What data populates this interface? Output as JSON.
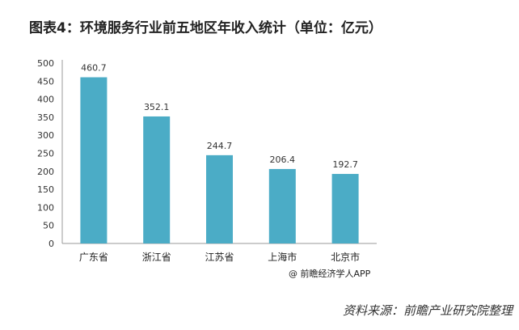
{
  "title": "图表4：环境服务行业前五地区年收入统计（单位：亿元）",
  "credit": "@ 前瞻经济学人APP",
  "source": "资料来源：前瞻产业研究院整理",
  "watermark": "前瞻产业研究院",
  "chart_data": {
    "type": "bar",
    "title": "图表4：环境服务行业前五地区年收入统计（单位：亿元）",
    "categories": [
      "广东省",
      "浙江省",
      "江苏省",
      "上海市",
      "北京市"
    ],
    "values": [
      460.7,
      352.1,
      244.7,
      206.4,
      192.7
    ],
    "data_labels": [
      "460.7",
      "352.1",
      "244.7",
      "206.4",
      "192.7"
    ],
    "yticks": [
      "0",
      "50",
      "100",
      "150",
      "200",
      "250",
      "300",
      "350",
      "400",
      "450",
      "500"
    ],
    "ylim": [
      0,
      500
    ],
    "grid": false,
    "bar_color": "#4bacc6"
  }
}
